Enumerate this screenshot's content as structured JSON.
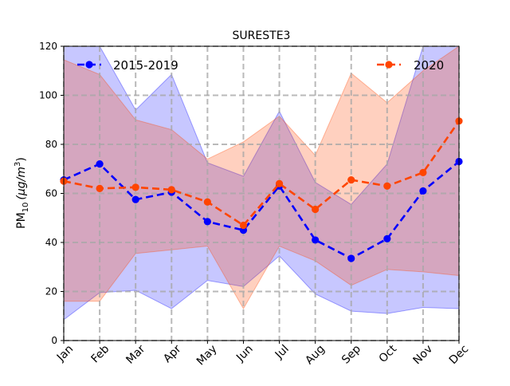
{
  "chart_data": {
    "type": "line",
    "title": "SURESTE3",
    "ylabel_main": "PM",
    "ylabel_sub": "10",
    "ylabel_units": "(μg/m",
    "ylabel_sup": "3",
    "ylabel_close": ")",
    "ylim": [
      0,
      120
    ],
    "yticks": [
      0,
      20,
      40,
      60,
      80,
      100,
      120
    ],
    "categories": [
      "Jan",
      "Feb",
      "Mar",
      "Apr",
      "May",
      "Jun",
      "Jul",
      "Aug",
      "Sep",
      "Oct",
      "Nov",
      "Dec"
    ],
    "grid": true,
    "series": [
      {
        "name": "2015-2019",
        "color": "#0000ff",
        "band_color": "#0000ff",
        "values": [
          65.5,
          72,
          57.5,
          60.5,
          48.5,
          45,
          63,
          41,
          33.5,
          41.5,
          61,
          73
        ],
        "band_upper": [
          122,
          122,
          94,
          108.5,
          72.5,
          67,
          93.5,
          64.5,
          55.5,
          72,
          122,
          122
        ],
        "band_lower": [
          8.5,
          19.5,
          20.5,
          13,
          24.5,
          22,
          34.5,
          19,
          12,
          11,
          13.5,
          13
        ],
        "legend_position": "top-left"
      },
      {
        "name": "2020",
        "color": "#ff4500",
        "band_color": "#ff4500",
        "values": [
          65,
          62,
          62.5,
          61.5,
          56.5,
          47,
          64,
          53.5,
          65.5,
          63,
          68.5,
          89.5
        ],
        "band_upper": [
          114.5,
          108.5,
          90,
          86,
          74,
          81,
          91.5,
          75.5,
          109,
          97,
          110,
          122
        ],
        "band_lower": [
          16,
          16,
          35.5,
          37,
          38.5,
          13,
          38.5,
          32.5,
          22.5,
          29,
          28,
          26.5
        ],
        "legend_position": "top-right"
      }
    ]
  }
}
